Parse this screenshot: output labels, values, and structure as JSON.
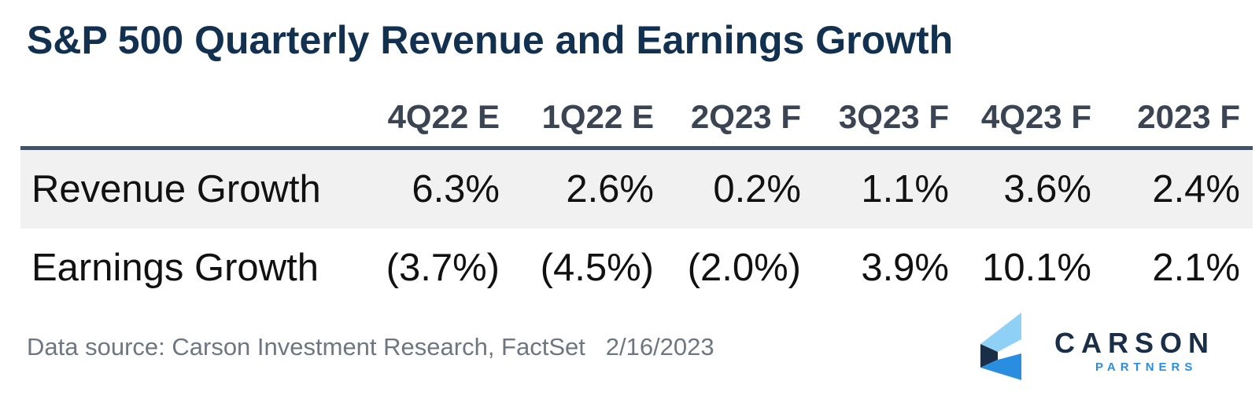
{
  "title": "S&P 500 Quarterly Revenue and Earnings Growth",
  "chart_data": {
    "type": "table",
    "columns": [
      "4Q22 E",
      "1Q22 E",
      "2Q23 F",
      "3Q23 F",
      "4Q23 F",
      "2023 F"
    ],
    "rows": [
      {
        "label": "Revenue Growth",
        "cells": [
          "6.3%",
          "2.6%",
          "0.2%",
          "1.1%",
          "3.6%",
          "2.4%"
        ],
        "values": [
          6.3,
          2.6,
          0.2,
          1.1,
          3.6,
          2.4
        ]
      },
      {
        "label": "Earnings Growth",
        "cells": [
          "(3.7%)",
          "(4.5%)",
          "(2.0%)",
          "3.9%",
          "10.1%",
          "2.1%"
        ],
        "values": [
          -3.7,
          -4.5,
          -2.0,
          3.9,
          10.1,
          2.1
        ]
      }
    ]
  },
  "footer": {
    "source": "Data source: Carson Investment Research, FactSet",
    "date": "2/16/2023"
  },
  "logo": {
    "name": "CARSON",
    "subtitle": "PARTNERS",
    "colors": {
      "light_blue": "#8fd0f7",
      "mid_blue": "#2a8ee0",
      "navy": "#1a2f47"
    }
  }
}
